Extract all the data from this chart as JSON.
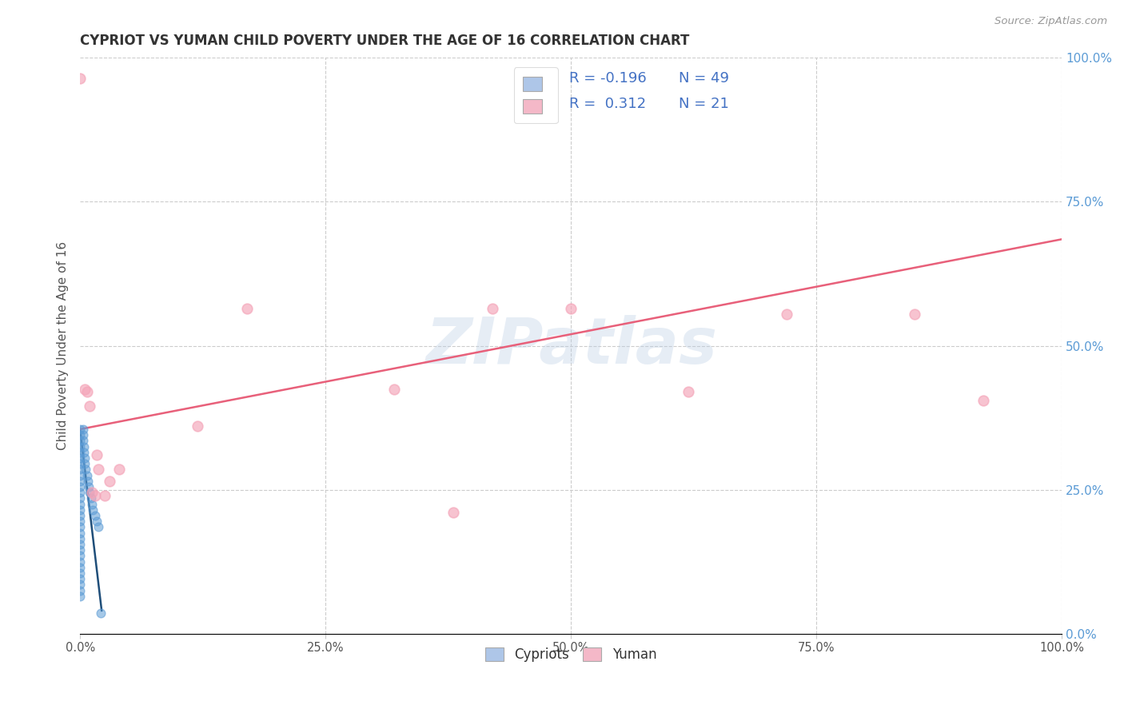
{
  "title": "CYPRIOT VS YUMAN CHILD POVERTY UNDER THE AGE OF 16 CORRELATION CHART",
  "source": "Source: ZipAtlas.com",
  "ylabel": "Child Poverty Under the Age of 16",
  "xlim": [
    0,
    1
  ],
  "ylim": [
    0,
    1
  ],
  "xticks": [
    0.0,
    0.25,
    0.5,
    0.75,
    1.0
  ],
  "yticks": [
    0.0,
    0.25,
    0.5,
    0.75,
    1.0
  ],
  "xticklabels": [
    "0.0%",
    "25.0%",
    "50.0%",
    "75.0%",
    "100.0%"
  ],
  "right_yticklabels": [
    "0.0%",
    "25.0%",
    "50.0%",
    "75.0%",
    "100.0%"
  ],
  "legend_R_cypriot": "-0.196",
  "legend_N_cypriot": "49",
  "legend_R_yuman": "0.312",
  "legend_N_yuman": "21",
  "cypriot_x": [
    0.0,
    0.0,
    0.0,
    0.0,
    0.0,
    0.0,
    0.0,
    0.0,
    0.0,
    0.0,
    0.0,
    0.0,
    0.0,
    0.0,
    0.0,
    0.0,
    0.0,
    0.0,
    0.0,
    0.0,
    0.0,
    0.0,
    0.0,
    0.0,
    0.0,
    0.0,
    0.0,
    0.0,
    0.0,
    0.0,
    0.003,
    0.003,
    0.003,
    0.004,
    0.004,
    0.005,
    0.005,
    0.006,
    0.007,
    0.008,
    0.009,
    0.01,
    0.011,
    0.012,
    0.013,
    0.015,
    0.017,
    0.019,
    0.021
  ],
  "cypriot_y": [
    0.355,
    0.345,
    0.335,
    0.325,
    0.315,
    0.305,
    0.295,
    0.285,
    0.275,
    0.265,
    0.255,
    0.245,
    0.235,
    0.225,
    0.215,
    0.205,
    0.195,
    0.185,
    0.175,
    0.165,
    0.155,
    0.145,
    0.135,
    0.125,
    0.115,
    0.105,
    0.095,
    0.085,
    0.075,
    0.065,
    0.355,
    0.345,
    0.335,
    0.325,
    0.315,
    0.305,
    0.295,
    0.285,
    0.275,
    0.265,
    0.255,
    0.245,
    0.235,
    0.225,
    0.215,
    0.205,
    0.195,
    0.185,
    0.035
  ],
  "cypriot_trend_x": [
    0.0,
    0.022
  ],
  "cypriot_trend_y": [
    0.355,
    0.04
  ],
  "yuman_x": [
    0.0,
    0.005,
    0.007,
    0.01,
    0.012,
    0.015,
    0.017,
    0.019,
    0.025,
    0.03,
    0.04,
    0.12,
    0.17,
    0.32,
    0.38,
    0.42,
    0.5,
    0.62,
    0.72,
    0.85,
    0.92
  ],
  "yuman_y": [
    0.965,
    0.425,
    0.42,
    0.395,
    0.245,
    0.24,
    0.31,
    0.285,
    0.24,
    0.265,
    0.285,
    0.36,
    0.565,
    0.425,
    0.21,
    0.565,
    0.565,
    0.42,
    0.555,
    0.555,
    0.405
  ],
  "yuman_trend_x": [
    0.0,
    1.0
  ],
  "yuman_trend_y": [
    0.355,
    0.685
  ],
  "cypriot_color": "#5b9bd5",
  "yuman_color": "#f4a4b8",
  "cypriot_trend_color": "#1f4e79",
  "yuman_trend_color": "#e8607a",
  "cypriot_legend_color": "#aec6e8",
  "yuman_legend_color": "#f4b8c8",
  "watermark": "ZIPatlas",
  "bg_color": "#ffffff",
  "grid_color": "#cccccc",
  "title_color": "#333333",
  "axis_label_color": "#555555",
  "right_tick_color": "#5b9bd5",
  "marker_size": 60,
  "legend_text_color": "#4472c4",
  "bottom_label_color": "#333333"
}
